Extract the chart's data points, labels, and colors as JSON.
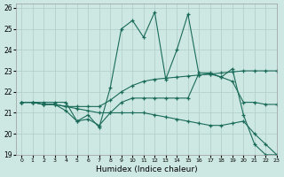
{
  "xlabel": "Humidex (Indice chaleur)",
  "xlim": [
    -0.5,
    23
  ],
  "ylim": [
    19,
    26.2
  ],
  "xticks": [
    0,
    1,
    2,
    3,
    4,
    5,
    6,
    7,
    8,
    9,
    10,
    11,
    12,
    13,
    14,
    15,
    16,
    17,
    18,
    19,
    20,
    21,
    22,
    23
  ],
  "yticks": [
    19,
    20,
    21,
    22,
    23,
    24,
    25,
    26
  ],
  "background_color": "#cde8e2",
  "grid_color": "#b0ccc8",
  "line_color": "#1a6b5a",
  "series": [
    {
      "x": [
        0,
        1,
        2,
        3,
        4,
        5,
        6,
        7,
        8,
        9,
        10,
        11,
        12,
        13,
        14,
        15,
        16,
        17,
        18,
        19,
        20,
        21,
        22,
        23
      ],
      "y": [
        21.5,
        21.5,
        21.5,
        21.5,
        21.5,
        20.6,
        20.9,
        20.3,
        22.2,
        25.0,
        25.4,
        24.6,
        25.8,
        22.6,
        24.0,
        25.7,
        22.8,
        22.85,
        22.7,
        23.1,
        20.9,
        19.5,
        19.0,
        19.0
      ]
    },
    {
      "x": [
        0,
        1,
        2,
        3,
        4,
        5,
        6,
        7,
        8,
        9,
        10,
        11,
        12,
        13,
        14,
        15,
        16,
        17,
        18,
        19,
        20,
        21,
        22,
        23
      ],
      "y": [
        21.5,
        21.5,
        21.4,
        21.4,
        21.3,
        21.3,
        21.3,
        21.3,
        21.6,
        22.0,
        22.3,
        22.5,
        22.6,
        22.65,
        22.7,
        22.75,
        22.8,
        22.85,
        22.9,
        22.95,
        23.0,
        23.0,
        23.0,
        23.0
      ]
    },
    {
      "x": [
        0,
        1,
        2,
        3,
        4,
        5,
        6,
        7,
        8,
        9,
        10,
        11,
        12,
        13,
        14,
        15,
        16,
        17,
        18,
        19,
        20,
        21,
        22,
        23
      ],
      "y": [
        21.5,
        21.5,
        21.4,
        21.4,
        21.1,
        20.6,
        20.7,
        20.4,
        21.0,
        21.5,
        21.7,
        21.7,
        21.7,
        21.7,
        21.7,
        21.7,
        22.9,
        22.9,
        22.7,
        22.5,
        21.5,
        21.5,
        21.4,
        21.4
      ]
    },
    {
      "x": [
        0,
        1,
        2,
        3,
        4,
        5,
        6,
        7,
        8,
        9,
        10,
        11,
        12,
        13,
        14,
        15,
        16,
        17,
        18,
        19,
        20,
        21,
        22,
        23
      ],
      "y": [
        21.5,
        21.5,
        21.4,
        21.4,
        21.3,
        21.2,
        21.1,
        21.0,
        21.0,
        21.0,
        21.0,
        21.0,
        20.9,
        20.8,
        20.7,
        20.6,
        20.5,
        20.4,
        20.4,
        20.5,
        20.6,
        20.0,
        19.5,
        19.0
      ]
    }
  ]
}
